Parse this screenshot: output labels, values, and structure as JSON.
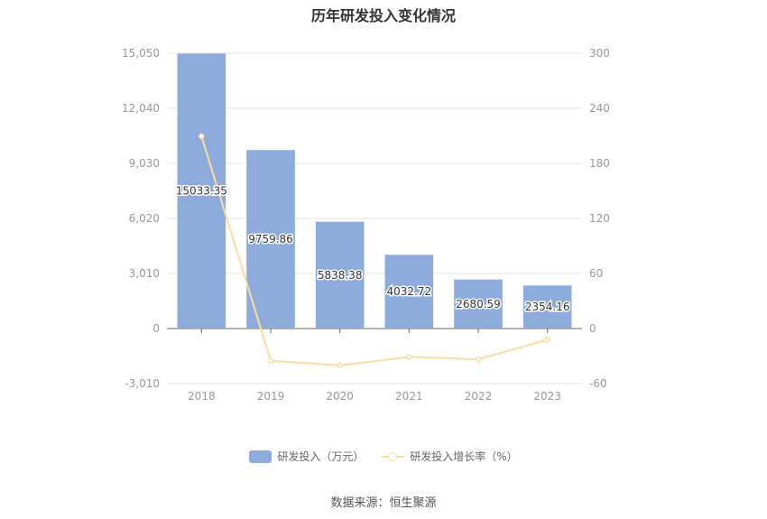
{
  "chart_data": {
    "type": "bar",
    "title": "历年研发投入变化情况",
    "categories": [
      "2018",
      "2019",
      "2020",
      "2021",
      "2022",
      "2023"
    ],
    "series": [
      {
        "name": "研发投入（万元）",
        "type": "bar",
        "axis": "left",
        "values": [
          15033.35,
          9759.86,
          5838.38,
          4032.72,
          2680.59,
          2354.16
        ],
        "labels": [
          "15033.35",
          "9759.86",
          "5838.38",
          "4032.72",
          "2680.59",
          "2354.16"
        ]
      },
      {
        "name": "研发投入增长率（%）",
        "type": "line",
        "axis": "right",
        "values": [
          209.5,
          -35.08,
          -40.18,
          -30.93,
          -33.53,
          -12.18
        ]
      }
    ],
    "y_left": {
      "range": [
        -3010,
        15050
      ],
      "ticks": [
        15050,
        12040,
        9030,
        6020,
        3010,
        0,
        -3010
      ],
      "tick_labels": [
        "15,050",
        "12,040",
        "9,030",
        "6,020",
        "3,010",
        "0",
        "-3,010"
      ]
    },
    "y_right": {
      "range": [
        -60,
        300
      ],
      "ticks": [
        300,
        240,
        180,
        120,
        60,
        0,
        -60
      ],
      "tick_labels": [
        "300",
        "240",
        "180",
        "120",
        "60",
        "0",
        "-60"
      ]
    },
    "grid": true,
    "legend_position": "bottom",
    "colors": {
      "bar": "#8eacdb",
      "line": "#fddca0",
      "grid": "#e6e6e6",
      "axis": "#999999"
    }
  },
  "legend": {
    "bar_label": "研发投入（万元）",
    "line_label": "研发投入增长率（%）"
  },
  "source": "数据来源：恒生聚源"
}
